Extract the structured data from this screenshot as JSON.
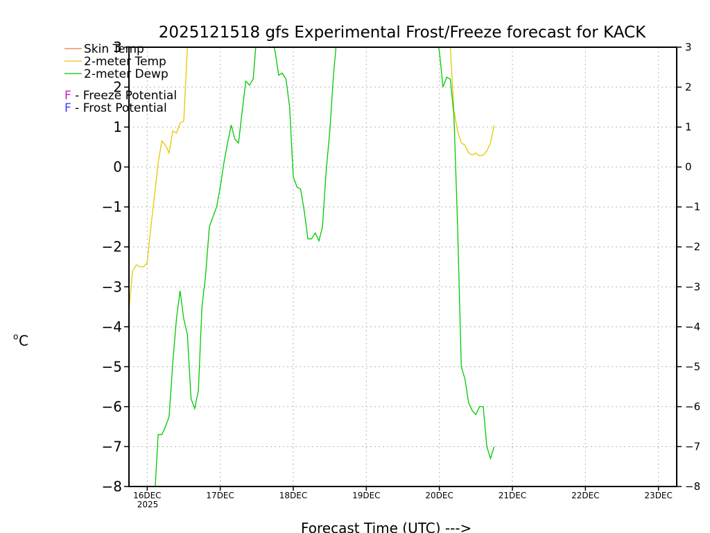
{
  "chart_data": {
    "type": "line",
    "title": "2025121518 gfs Experimental Frost/Freeze forecast for KACK",
    "xlabel": "Forecast Time (UTC) --->",
    "ylabel": "°C",
    "ylabel_degree": "o",
    "ylabel_unit": "C",
    "ylim": [
      -8,
      3
    ],
    "xlim": [
      -0.25,
      7.25
    ],
    "y_ticks": [
      -8,
      -7,
      -6,
      -5,
      -4,
      -3,
      -2,
      -1,
      0,
      1,
      2,
      3
    ],
    "y_tick_labels": [
      "−8",
      "−7",
      "−6",
      "−5",
      "−4",
      "−3",
      "−2",
      "−1",
      "0",
      "1",
      "2",
      "3"
    ],
    "x_tick_labels": [
      "16DEC",
      "17DEC",
      "18DEC",
      "19DEC",
      "20DEC",
      "21DEC",
      "22DEC",
      "23DEC"
    ],
    "x_tick_sublabel": "2025",
    "grid": true,
    "legend": [
      {
        "label": "Skin Temp",
        "color": "#f07830"
      },
      {
        "label": "2-meter Temp",
        "color": "#e6c800"
      },
      {
        "label": "2-meter Dewp",
        "color": "#00c800"
      }
    ],
    "potential_legend": [
      {
        "letter": "F",
        "text": " - Freeze Potential",
        "color": "#c020c0"
      },
      {
        "letter": "F",
        "text": " - Frost Potential",
        "color": "#3c3cff"
      }
    ],
    "series": [
      {
        "name": "2-meter Temp",
        "color": "#e6c800",
        "x": [
          -0.25,
          -0.2,
          -0.15,
          -0.1,
          -0.05,
          0.0,
          0.05,
          0.1,
          0.15,
          0.2,
          0.25,
          0.3,
          0.35,
          0.4,
          0.45,
          0.5,
          0.55,
          0.6,
          0.65,
          0.7,
          0.75,
          0.8,
          0.85,
          0.9,
          0.95,
          1.0,
          3.95,
          4.0,
          4.05,
          4.1,
          4.15,
          4.2,
          4.25,
          4.3,
          4.35,
          4.4,
          4.45,
          4.5,
          4.55,
          4.6,
          4.65,
          4.7,
          4.75
        ],
        "y": [
          -3.6,
          -2.6,
          -2.45,
          -2.5,
          -2.5,
          -2.4,
          -1.5,
          -0.7,
          0.1,
          0.65,
          0.55,
          0.35,
          0.9,
          0.85,
          1.1,
          1.15,
          3.0,
          3.3,
          3.3,
          3.3,
          3.3,
          3.3,
          3.3,
          3.3,
          3.3,
          3.3,
          3.3,
          3.3,
          3.3,
          3.3,
          3.0,
          1.4,
          0.9,
          0.6,
          0.55,
          0.35,
          0.3,
          0.35,
          0.28,
          0.3,
          0.4,
          0.6,
          1.05
        ]
      },
      {
        "name": "2-meter Dewp",
        "color": "#00c800",
        "x": [
          0.1,
          0.15,
          0.2,
          0.25,
          0.3,
          0.35,
          0.4,
          0.45,
          0.5,
          0.55,
          0.6,
          0.65,
          0.7,
          0.75,
          0.8,
          0.85,
          0.9,
          0.95,
          1.0,
          1.05,
          1.1,
          1.15,
          1.2,
          1.25,
          1.3,
          1.35,
          1.4,
          1.45,
          1.5,
          1.55,
          1.6,
          1.65,
          1.7,
          1.75,
          1.8,
          1.85,
          1.9,
          1.95,
          2.0,
          2.05,
          2.1,
          2.15,
          2.2,
          2.25,
          2.3,
          2.35,
          2.4,
          2.45,
          2.5,
          2.55,
          2.6,
          2.65,
          2.7,
          2.75,
          2.8,
          2.85,
          2.9,
          2.95,
          3.0,
          3.05,
          3.1,
          3.95,
          4.0,
          4.05,
          4.1,
          4.15,
          4.2,
          4.25,
          4.3,
          4.35,
          4.4,
          4.45,
          4.5,
          4.55,
          4.6,
          4.65,
          4.7,
          4.75
        ],
        "y": [
          -8.3,
          -6.7,
          -6.7,
          -6.5,
          -6.25,
          -4.9,
          -3.8,
          -3.1,
          -3.8,
          -4.2,
          -5.8,
          -6.05,
          -5.6,
          -3.5,
          -2.7,
          -1.5,
          -1.25,
          -1.0,
          -0.5,
          0.1,
          0.6,
          1.05,
          0.7,
          0.6,
          1.4,
          2.15,
          2.05,
          2.2,
          3.3,
          3.3,
          3.3,
          3.3,
          3.3,
          2.9,
          2.3,
          2.35,
          2.2,
          1.5,
          -0.25,
          -0.5,
          -0.55,
          -1.1,
          -1.8,
          -1.8,
          -1.65,
          -1.85,
          -1.5,
          -0.1,
          0.9,
          2.3,
          3.3,
          3.3,
          3.3,
          3.3,
          3.3,
          3.3,
          3.3,
          3.3,
          3.3,
          3.3,
          3.3,
          3.3,
          2.9,
          2.0,
          2.25,
          2.2,
          1.3,
          -1.5,
          -5.0,
          -5.3,
          -5.9,
          -6.1,
          -6.2,
          -6.0,
          -6.0,
          -7.0,
          -7.3,
          -7.0
        ]
      }
    ]
  }
}
